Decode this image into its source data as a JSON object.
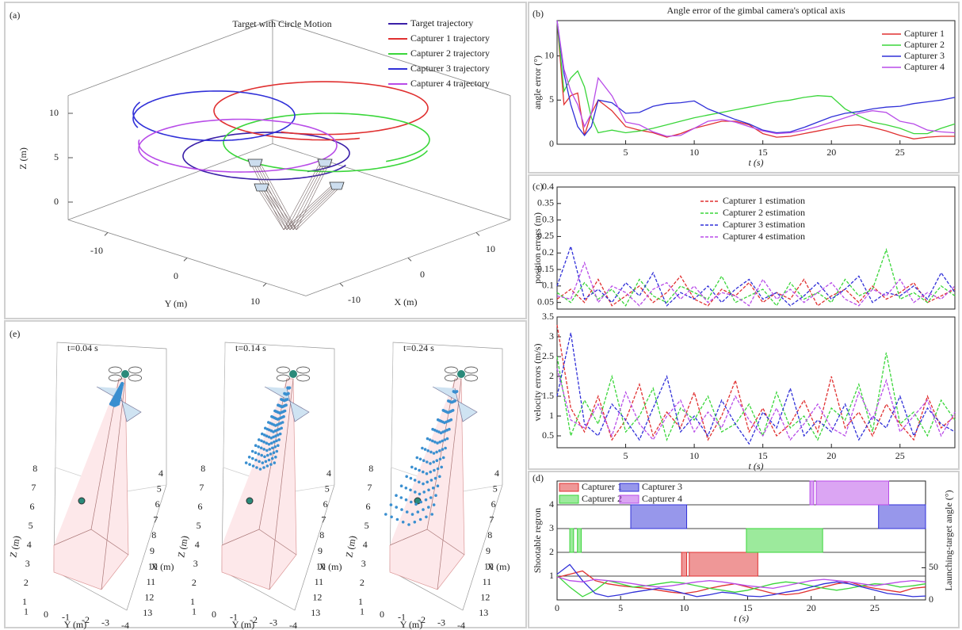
{
  "chart_data": [
    {
      "type": "3d-line",
      "panel": "(a)",
      "title": "Target with Circle Motion",
      "series": [
        {
          "name": "Target trajectory",
          "color": "#3a1fa8"
        },
        {
          "name": "Capturer 1 trajectory",
          "color": "#e03030"
        },
        {
          "name": "Capturer 2 trajectory",
          "color": "#3ad63a"
        },
        {
          "name": "Capturer 3 trajectory",
          "color": "#3030d8"
        },
        {
          "name": "Capturer 4 trajectory",
          "color": "#b84ce8"
        }
      ],
      "xlabel": "X (m)",
      "ylabel": "Y (m)",
      "zlabel": "Z (m)",
      "xticks": [
        10,
        0,
        -10
      ],
      "yticks": [
        -10,
        0,
        10
      ],
      "zticks": [
        0,
        5,
        10
      ]
    },
    {
      "type": "line",
      "panel": "(b)",
      "title": "Angle error of the gimbal camera's optical axis",
      "xlabel": "t (s)",
      "ylabel": "angle error (°)",
      "x": [
        0,
        0.5,
        1,
        1.5,
        2,
        2.5,
        3,
        4,
        5,
        6,
        7,
        8,
        9,
        10,
        11,
        12,
        13,
        14,
        15,
        16,
        17,
        18,
        19,
        20,
        21,
        22,
        23,
        24,
        25,
        26,
        27,
        28,
        29
      ],
      "series": [
        {
          "name": "Capturer 1",
          "color": "#e03030",
          "values": [
            14,
            4.5,
            5.5,
            5.8,
            1.0,
            3.5,
            5.0,
            3.8,
            2.0,
            1.6,
            1.3,
            0.8,
            1.2,
            1.8,
            2.2,
            2.6,
            2.6,
            2.2,
            1.2,
            0.8,
            0.9,
            1.2,
            1.5,
            1.8,
            2.1,
            2.2,
            1.9,
            1.5,
            1.0,
            0.6,
            0.8,
            0.9,
            0.9
          ]
        },
        {
          "name": "Capturer 2",
          "color": "#3ad63a",
          "values": [
            14,
            6.0,
            7.5,
            8.3,
            6.5,
            3.0,
            1.3,
            1.6,
            1.3,
            1.5,
            1.8,
            2.2,
            2.6,
            3.0,
            3.3,
            3.6,
            3.9,
            4.2,
            4.5,
            4.8,
            5.0,
            5.3,
            5.5,
            5.4,
            4.0,
            3.2,
            2.5,
            2.2,
            1.8,
            1.2,
            1.2,
            1.8,
            2.3
          ]
        },
        {
          "name": "Capturer 3",
          "color": "#3030d8",
          "values": [
            14,
            8.0,
            4.5,
            2.0,
            1.0,
            2.0,
            5.0,
            4.7,
            3.5,
            3.6,
            4.3,
            4.6,
            4.7,
            4.9,
            4.0,
            3.4,
            2.8,
            2.3,
            1.6,
            1.3,
            1.4,
            1.9,
            2.5,
            3.1,
            3.5,
            3.7,
            4.0,
            4.2,
            4.3,
            4.6,
            4.8,
            5.0,
            5.3
          ]
        },
        {
          "name": "Capturer 4",
          "color": "#b84ce8",
          "values": [
            14,
            8.5,
            6.0,
            4.5,
            2.0,
            3.5,
            7.5,
            5.5,
            2.5,
            2.2,
            1.4,
            0.9,
            1.0,
            1.8,
            2.6,
            2.8,
            2.5,
            2.0,
            1.5,
            1.2,
            1.3,
            1.6,
            2.0,
            2.5,
            3.0,
            3.5,
            3.8,
            3.6,
            2.6,
            2.3,
            1.6,
            1.4,
            1.3
          ]
        }
      ],
      "xlim": [
        0,
        29
      ],
      "ylim": [
        0,
        14
      ],
      "xticks": [
        5,
        10,
        15,
        20,
        25
      ],
      "yticks": [
        0,
        5,
        10
      ],
      "legend": "upper right"
    },
    {
      "type": "line",
      "panel": "(c)",
      "ylabel": "position errors (m)",
      "line_style": "dashed",
      "x": [
        0,
        1,
        2,
        3,
        4,
        5,
        6,
        7,
        8,
        9,
        10,
        11,
        12,
        13,
        14,
        15,
        16,
        17,
        18,
        19,
        20,
        21,
        22,
        23,
        24,
        25,
        26,
        27,
        28,
        29
      ],
      "series": [
        {
          "name": "Capturer 1 estimation",
          "color": "#e03030",
          "values": [
            0.06,
            0.09,
            0.05,
            0.12,
            0.04,
            0.07,
            0.1,
            0.05,
            0.08,
            0.13,
            0.06,
            0.04,
            0.09,
            0.07,
            0.11,
            0.05,
            0.08,
            0.06,
            0.12,
            0.04,
            0.07,
            0.09,
            0.05,
            0.1,
            0.06,
            0.08,
            0.11,
            0.05,
            0.07,
            0.09
          ]
        },
        {
          "name": "Capturer 2 estimation",
          "color": "#3ad63a",
          "values": [
            0.08,
            0.05,
            0.11,
            0.06,
            0.09,
            0.04,
            0.12,
            0.07,
            0.05,
            0.1,
            0.08,
            0.06,
            0.13,
            0.05,
            0.07,
            0.09,
            0.04,
            0.11,
            0.06,
            0.08,
            0.05,
            0.12,
            0.07,
            0.09,
            0.21,
            0.06,
            0.08,
            0.05,
            0.1,
            0.07
          ]
        },
        {
          "name": "Capturer 3 estimation",
          "color": "#3030d8",
          "values": [
            0.1,
            0.22,
            0.06,
            0.09,
            0.05,
            0.11,
            0.07,
            0.14,
            0.04,
            0.08,
            0.06,
            0.1,
            0.05,
            0.09,
            0.12,
            0.06,
            0.08,
            0.04,
            0.07,
            0.11,
            0.06,
            0.09,
            0.13,
            0.05,
            0.08,
            0.07,
            0.1,
            0.06,
            0.14,
            0.08
          ]
        },
        {
          "name": "Capturer 4 estimation",
          "color": "#b84ce8",
          "values": [
            0.07,
            0.06,
            0.17,
            0.05,
            0.1,
            0.08,
            0.04,
            0.09,
            0.11,
            0.06,
            0.1,
            0.05,
            0.08,
            0.07,
            0.04,
            0.12,
            0.06,
            0.09,
            0.05,
            0.08,
            0.11,
            0.06,
            0.04,
            0.09,
            0.07,
            0.12,
            0.05,
            0.08,
            0.06,
            0.1
          ]
        }
      ],
      "xlim": [
        0,
        29
      ],
      "ylim": [
        0.03,
        0.4
      ],
      "yticks": [
        0.05,
        0.1,
        0.15,
        0.2,
        0.25,
        0.3,
        0.35,
        0.4
      ],
      "legend": "upper center"
    },
    {
      "type": "line",
      "xlabel": "t (s)",
      "ylabel": "velocity errors (m/s)",
      "line_style": "dashed",
      "x": [
        0,
        1,
        2,
        3,
        4,
        5,
        6,
        7,
        8,
        9,
        10,
        11,
        12,
        13,
        14,
        15,
        16,
        17,
        18,
        19,
        20,
        21,
        22,
        23,
        24,
        25,
        26,
        27,
        28,
        29
      ],
      "series": [
        {
          "color": "#e03030",
          "values": [
            3.3,
            1.2,
            0.6,
            1.5,
            0.4,
            0.9,
            1.8,
            0.5,
            1.1,
            0.7,
            1.6,
            0.4,
            1.0,
            1.9,
            0.6,
            1.2,
            0.5,
            0.8,
            1.4,
            0.6,
            2.0,
            0.7,
            1.1,
            0.5,
            1.3,
            0.8,
            0.4,
            1.5,
            0.7,
            1.0
          ]
        },
        {
          "color": "#3ad63a",
          "values": [
            2.5,
            0.5,
            1.4,
            0.8,
            2.0,
            0.6,
            1.0,
            1.7,
            0.4,
            1.2,
            0.9,
            1.5,
            0.6,
            0.8,
            1.3,
            0.5,
            1.6,
            0.7,
            1.0,
            0.4,
            1.2,
            0.9,
            1.8,
            0.6,
            2.6,
            0.8,
            1.1,
            0.5,
            1.4,
            0.9
          ]
        },
        {
          "color": "#3030d8",
          "values": [
            1.5,
            3.1,
            0.8,
            0.5,
            1.3,
            0.9,
            0.4,
            1.2,
            2.0,
            0.6,
            1.0,
            0.5,
            1.4,
            0.8,
            0.3,
            1.1,
            0.7,
            1.7,
            0.5,
            0.9,
            0.6,
            1.3,
            0.4,
            1.0,
            0.7,
            1.5,
            0.5,
            1.2,
            0.8,
            0.6
          ]
        },
        {
          "color": "#b84ce8",
          "values": [
            2.2,
            0.9,
            0.7,
            1.3,
            0.5,
            1.6,
            0.8,
            0.4,
            1.0,
            1.4,
            0.6,
            1.1,
            0.7,
            1.5,
            0.9,
            0.5,
            1.2,
            0.4,
            0.8,
            1.3,
            0.7,
            0.5,
            1.6,
            0.9,
            1.9,
            0.6,
            1.0,
            1.4,
            0.5,
            1.1
          ]
        }
      ],
      "xlim": [
        0,
        29
      ],
      "ylim": [
        0.2,
        3.5
      ],
      "xticks": [
        5,
        10,
        15,
        20,
        25
      ],
      "yticks": [
        0.5,
        1,
        1.5,
        2,
        2.5,
        3,
        3.5
      ]
    },
    {
      "type": "timeline",
      "panel": "(d)",
      "xlabel": "t (s)",
      "ylabel": "Shootable regron",
      "y2label": "Launching-target angle (°)",
      "y_color": "#2f7fc1",
      "y2_color": "#d9534f",
      "grid": true,
      "legend": "upper left",
      "x": [
        0,
        1,
        2,
        3,
        4,
        5,
        6,
        7,
        8,
        9,
        10,
        11,
        12,
        13,
        14,
        15,
        16,
        17,
        18,
        19,
        20,
        21,
        22,
        23,
        24,
        25,
        26,
        27,
        28,
        29
      ],
      "series": [
        {
          "name": "Capturer 1",
          "color": "#e03030",
          "y": 1,
          "intervals": [
            [
              9.8,
              10.2
            ],
            [
              10.4,
              15.8
            ]
          ],
          "axis": "y2",
          "values": [
            35,
            40,
            45,
            30,
            25,
            22,
            20,
            18,
            15,
            12,
            10,
            13,
            18,
            22,
            25,
            20,
            15,
            10,
            8,
            10,
            15,
            20,
            25,
            28,
            22,
            18,
            15,
            12,
            18,
            20
          ]
        },
        {
          "name": "Capturer 2",
          "color": "#3ad63a",
          "y": 2,
          "intervals": [
            [
              1.0,
              1.3
            ],
            [
              1.6,
              1.9
            ],
            [
              14.9,
              20.9
            ]
          ],
          "axis": "y2",
          "values": [
            38,
            20,
            5,
            15,
            30,
            25,
            20,
            22,
            25,
            28,
            26,
            22,
            18,
            15,
            12,
            15,
            20,
            25,
            28,
            26,
            22,
            18,
            15,
            18,
            22,
            25,
            24,
            20,
            22,
            25
          ]
        },
        {
          "name": "Capturer 3",
          "color": "#3030d8",
          "y": 3,
          "intervals": [
            [
              5.8,
              10.2
            ],
            [
              25.3,
              29
            ]
          ],
          "axis": "y2",
          "values": [
            40,
            55,
            30,
            10,
            5,
            8,
            12,
            15,
            18,
            15,
            10,
            5,
            8,
            12,
            10,
            6,
            5,
            8,
            12,
            15,
            20,
            25,
            28,
            25,
            20,
            15,
            10,
            8,
            5,
            6
          ]
        },
        {
          "name": "Capturer 4",
          "color": "#b84ce8",
          "y": 4,
          "intervals": [
            [
              19.9,
              20.2
            ],
            [
              20.4,
              26.1
            ]
          ],
          "axis": "y2",
          "values": [
            36,
            30,
            28,
            32,
            30,
            28,
            25,
            22,
            20,
            22,
            25,
            28,
            30,
            28,
            25,
            22,
            20,
            18,
            22,
            26,
            30,
            32,
            30,
            28,
            25,
            22,
            25,
            28,
            30,
            28
          ]
        }
      ],
      "xlim": [
        0,
        29
      ],
      "ylim": [
        0,
        5
      ],
      "y2lim": [
        0,
        185
      ],
      "xticks": [
        0,
        5,
        10,
        15,
        20,
        25
      ],
      "yticks": [
        1,
        2,
        3,
        4
      ],
      "y2ticks": [
        0,
        50
      ]
    },
    {
      "type": "3d-scene",
      "panel": "(e)",
      "titles": [
        "t=0.04 s",
        "t=0.14 s",
        "t=0.24 s"
      ],
      "xlabel": "X (m)",
      "ylabel": "Y (m)",
      "zlabel": "Z (m)",
      "xticks": [
        4,
        5,
        6,
        7,
        8,
        9,
        10,
        11,
        12,
        13
      ],
      "yticks": [
        1,
        0,
        -1,
        -2,
        -3,
        -4
      ],
      "zticks": [
        1,
        2,
        3,
        4,
        5,
        6,
        7,
        8
      ]
    }
  ]
}
